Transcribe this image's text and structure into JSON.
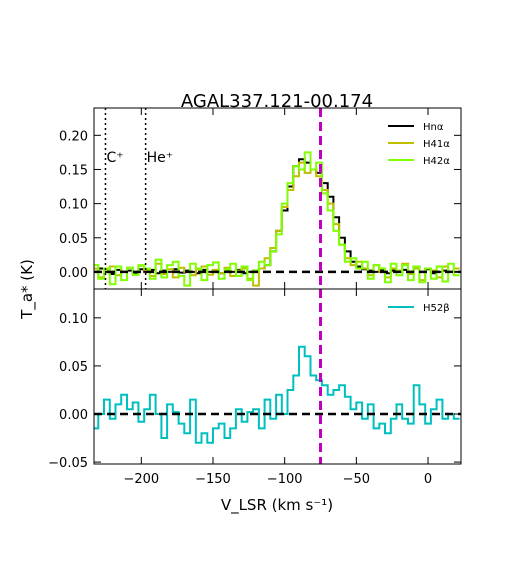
{
  "chart_data": {
    "title": "AGAL337.121-00.174",
    "xlabel": "V_LSR (km s⁻¹)",
    "ylabel": "T_a* (K)",
    "xlim": [
      -233,
      23
    ],
    "xticks": [
      -200,
      -150,
      -100,
      -50,
      0
    ],
    "xtick_labels": [
      "−200",
      "−150",
      "−100",
      "−50",
      "0"
    ],
    "vline_center": -75,
    "panels": [
      {
        "type": "line",
        "ylim": [
          -0.025,
          0.24
        ],
        "yticks": [
          0.0,
          0.05,
          0.1,
          0.15,
          0.2
        ],
        "ytick_labels": [
          "0.00",
          "0.05",
          "0.10",
          "0.15",
          "0.20"
        ],
        "legend_position": "top-right",
        "annotations": [
          {
            "text": "C⁺",
            "x": -225
          },
          {
            "text": "He⁺",
            "x": -197
          }
        ],
        "series": [
          {
            "name": "Hnα",
            "color": "#000000",
            "x": [
              -232,
              -228,
              -224,
              -220,
              -216,
              -212,
              -208,
              -204,
              -200,
              -196,
              -192,
              -188,
              -184,
              -180,
              -176,
              -172,
              -168,
              -164,
              -160,
              -156,
              -152,
              -148,
              -144,
              -140,
              -136,
              -132,
              -128,
              -124,
              -120,
              -116,
              -112,
              -108,
              -104,
              -100,
              -96,
              -92,
              -88,
              -84,
              -80,
              -76,
              -72,
              -68,
              -64,
              -60,
              -56,
              -52,
              -48,
              -44,
              -40,
              -36,
              -32,
              -28,
              -24,
              -20,
              -16,
              -12,
              -8,
              -4,
              0,
              4,
              8,
              12,
              16,
              20
            ],
            "y": [
              0.0,
              0.005,
              0.0,
              -0.003,
              0.003,
              0.0,
              0.002,
              -0.002,
              0.004,
              0.0,
              0.003,
              -0.002,
              0.002,
              0.0,
              0.004,
              -0.001,
              0.002,
              0.0,
              -0.002,
              0.003,
              0.0,
              0.002,
              -0.002,
              0.001,
              0.0,
              0.003,
              -0.002,
              0.0,
              0.002,
              0.005,
              0.01,
              0.03,
              0.06,
              0.09,
              0.125,
              0.155,
              0.165,
              0.16,
              0.15,
              0.145,
              0.13,
              0.11,
              0.08,
              0.05,
              0.03,
              0.015,
              0.008,
              0.004,
              0.002,
              0.0,
              0.003,
              -0.002,
              0.002,
              0.0,
              0.003,
              0.0,
              0.008,
              0.0,
              0.004,
              -0.002,
              0.0,
              0.002,
              0.0,
              0.0
            ]
          },
          {
            "name": "H41α",
            "color": "#bfbf00",
            "x": [
              -232,
              -228,
              -224,
              -220,
              -216,
              -212,
              -208,
              -204,
              -200,
              -196,
              -192,
              -188,
              -184,
              -180,
              -176,
              -172,
              -168,
              -164,
              -160,
              -156,
              -152,
              -148,
              -144,
              -140,
              -136,
              -132,
              -128,
              -124,
              -120,
              -116,
              -112,
              -108,
              -104,
              -100,
              -96,
              -92,
              -88,
              -84,
              -80,
              -76,
              -72,
              -68,
              -64,
              -60,
              -56,
              -52,
              -48,
              -44,
              -40,
              -36,
              -32,
              -28,
              -24,
              -20,
              -16,
              -12,
              -8,
              -4,
              0,
              4,
              8,
              12,
              16,
              20
            ],
            "y": [
              0.005,
              -0.008,
              0.003,
              0.008,
              -0.005,
              0.0,
              0.006,
              -0.004,
              0.009,
              0.003,
              -0.006,
              0.012,
              -0.003,
              0.004,
              -0.008,
              0.006,
              0.0,
              -0.005,
              0.004,
              0.008,
              -0.004,
              0.003,
              -0.002,
              0.006,
              -0.006,
              0.002,
              0.005,
              -0.01,
              -0.02,
              0.005,
              0.02,
              0.035,
              0.06,
              0.095,
              0.12,
              0.14,
              0.16,
              0.145,
              0.15,
              0.14,
              0.12,
              0.1,
              0.07,
              0.04,
              0.02,
              0.01,
              0.015,
              0.005,
              -0.005,
              0.01,
              0.0,
              -0.008,
              0.005,
              0.002,
              0.012,
              -0.003,
              0.005,
              -0.012,
              0.005,
              0.002,
              -0.008,
              0.008,
              0.0,
              0.005
            ]
          },
          {
            "name": "H42α",
            "color": "#7fff00",
            "x": [
              -232,
              -228,
              -224,
              -220,
              -216,
              -212,
              -208,
              -204,
              -200,
              -196,
              -192,
              -188,
              -184,
              -180,
              -176,
              -172,
              -168,
              -164,
              -160,
              -156,
              -152,
              -148,
              -144,
              -140,
              -136,
              -132,
              -128,
              -124,
              -120,
              -116,
              -112,
              -108,
              -104,
              -100,
              -96,
              -92,
              -88,
              -84,
              -80,
              -76,
              -72,
              -68,
              -64,
              -60,
              -56,
              -52,
              -48,
              -44,
              -40,
              -36,
              -32,
              -28,
              -24,
              -20,
              -16,
              -12,
              -8,
              -4,
              0,
              4,
              8,
              12,
              16,
              20
            ],
            "y": [
              0.01,
              -0.01,
              0.005,
              -0.018,
              0.008,
              -0.012,
              0.006,
              -0.004,
              0.01,
              0.005,
              -0.01,
              0.018,
              -0.008,
              0.01,
              0.015,
              -0.006,
              -0.02,
              0.012,
              0.005,
              -0.012,
              0.01,
              0.014,
              -0.01,
              0.004,
              0.012,
              -0.006,
              0.008,
              -0.012,
              0.002,
              0.015,
              0.01,
              0.03,
              0.055,
              0.1,
              0.13,
              0.155,
              0.15,
              0.175,
              0.15,
              0.16,
              0.115,
              0.09,
              0.06,
              0.04,
              0.015,
              0.02,
              0.005,
              0.015,
              -0.01,
              0.01,
              0.005,
              -0.015,
              0.012,
              -0.005,
              0.01,
              -0.012,
              0.008,
              -0.015,
              0.005,
              -0.01,
              0.008,
              -0.014,
              0.012,
              -0.005
            ]
          }
        ]
      },
      {
        "type": "line",
        "ylim": [
          -0.052,
          0.13
        ],
        "yticks": [
          -0.05,
          0.0,
          0.05,
          0.1
        ],
        "ytick_labels": [
          "−0.05",
          "0.00",
          "0.05",
          "0.10"
        ],
        "legend_position": "top-right",
        "series": [
          {
            "name": "H52β",
            "color": "#00bfbf",
            "x": [
              -232,
              -228,
              -224,
              -220,
              -216,
              -212,
              -208,
              -204,
              -200,
              -196,
              -192,
              -188,
              -184,
              -180,
              -176,
              -172,
              -168,
              -164,
              -160,
              -156,
              -152,
              -148,
              -144,
              -140,
              -136,
              -132,
              -128,
              -124,
              -120,
              -116,
              -112,
              -108,
              -104,
              -100,
              -96,
              -92,
              -88,
              -84,
              -80,
              -76,
              -72,
              -68,
              -64,
              -60,
              -56,
              -52,
              -48,
              -44,
              -40,
              -36,
              -32,
              -28,
              -24,
              -20,
              -16,
              -12,
              -8,
              -4,
              0,
              4,
              8,
              12,
              16,
              20
            ],
            "y": [
              -0.015,
              0.0,
              0.015,
              -0.005,
              0.01,
              0.02,
              0.005,
              0.012,
              -0.008,
              0.005,
              0.02,
              0.0,
              -0.025,
              0.01,
              0.002,
              -0.01,
              -0.02,
              0.015,
              -0.03,
              -0.02,
              -0.03,
              -0.015,
              -0.01,
              -0.025,
              -0.015,
              0.005,
              -0.008,
              0.002,
              0.005,
              -0.015,
              0.015,
              -0.005,
              0.02,
              0.0,
              0.025,
              0.04,
              0.07,
              0.06,
              0.04,
              0.035,
              0.03,
              0.02,
              0.025,
              0.03,
              0.018,
              0.005,
              0.012,
              -0.005,
              0.01,
              -0.015,
              -0.01,
              -0.02,
              -0.005,
              0.01,
              -0.005,
              -0.01,
              0.03,
              0.01,
              -0.01,
              0.005,
              0.015,
              -0.005,
              0.0,
              -0.005
            ]
          }
        ]
      }
    ]
  }
}
